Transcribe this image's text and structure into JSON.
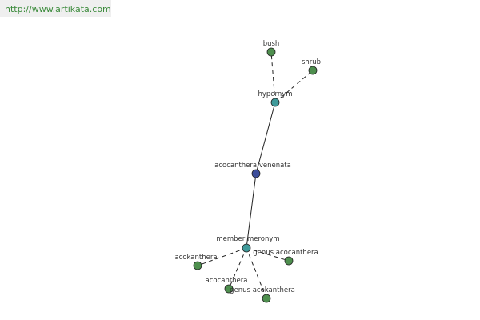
{
  "header": {
    "url": "http://www.artikata.com"
  },
  "nodes": [
    {
      "label": "acocanthera venenata"
    },
    {
      "label": "hypernym"
    },
    {
      "label": "bush"
    },
    {
      "label": "shrub"
    },
    {
      "label": "member meronym"
    },
    {
      "label": "acokanthera"
    },
    {
      "label": "genus acocanthera"
    },
    {
      "label": "acocanthera"
    },
    {
      "label": "genus acokanthera"
    }
  ]
}
